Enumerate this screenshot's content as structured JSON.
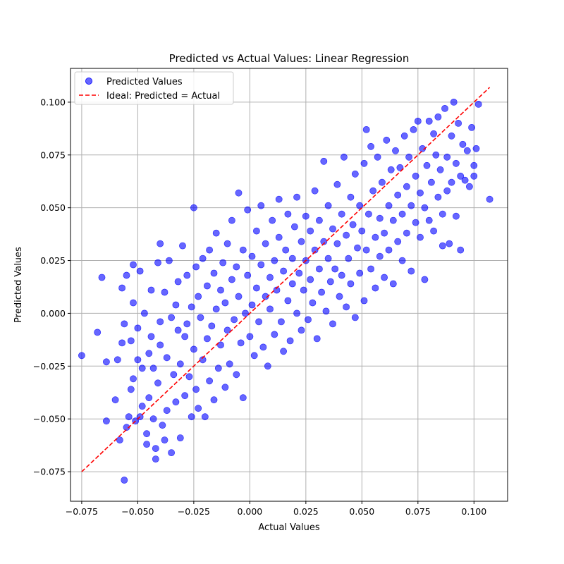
{
  "chart_data": {
    "type": "scatter",
    "title": "Predicted vs Actual Values: Linear Regression",
    "xlabel": "Actual Values",
    "ylabel": "Predicted Values",
    "xlim": [
      -0.08,
      0.115
    ],
    "ylim": [
      -0.089,
      0.116
    ],
    "xticks": [
      -0.075,
      -0.05,
      -0.025,
      0.0,
      0.025,
      0.05,
      0.075,
      0.1
    ],
    "xtick_labels": [
      "−0.075",
      "−0.050",
      "−0.025",
      "0.000",
      "0.025",
      "0.050",
      "0.075",
      "0.100"
    ],
    "yticks": [
      -0.075,
      -0.05,
      -0.025,
      0.0,
      0.025,
      0.05,
      0.075,
      0.1
    ],
    "ytick_labels": [
      "−0.075",
      "−0.050",
      "−0.025",
      "0.000",
      "0.025",
      "0.050",
      "0.075",
      "0.100"
    ],
    "grid": true,
    "legend_position": "top-left",
    "series": [
      {
        "name": "Predicted Values",
        "kind": "scatter",
        "color": "#0000ff",
        "points": [
          [
            -0.075,
            -0.02
          ],
          [
            -0.068,
            -0.009
          ],
          [
            -0.066,
            0.017
          ],
          [
            -0.064,
            -0.051
          ],
          [
            -0.064,
            -0.023
          ],
          [
            -0.06,
            -0.041
          ],
          [
            -0.059,
            -0.022
          ],
          [
            -0.058,
            -0.06
          ],
          [
            -0.057,
            -0.014
          ],
          [
            -0.057,
            0.012
          ],
          [
            -0.056,
            -0.005
          ],
          [
            -0.056,
            -0.079
          ],
          [
            -0.055,
            -0.054
          ],
          [
            -0.055,
            0.018
          ],
          [
            -0.054,
            -0.049
          ],
          [
            -0.053,
            -0.036
          ],
          [
            -0.053,
            -0.013
          ],
          [
            -0.052,
            -0.031
          ],
          [
            -0.052,
            0.005
          ],
          [
            -0.052,
            0.023
          ],
          [
            -0.051,
            -0.051
          ],
          [
            -0.05,
            -0.022
          ],
          [
            -0.05,
            -0.007
          ],
          [
            -0.049,
            0.02
          ],
          [
            -0.049,
            -0.049
          ],
          [
            -0.048,
            -0.026
          ],
          [
            -0.048,
            -0.044
          ],
          [
            -0.047,
            0.0
          ],
          [
            -0.046,
            -0.057
          ],
          [
            -0.046,
            -0.062
          ],
          [
            -0.045,
            -0.019
          ],
          [
            -0.045,
            -0.04
          ],
          [
            -0.044,
            -0.011
          ],
          [
            -0.044,
            0.011
          ],
          [
            -0.043,
            -0.026
          ],
          [
            -0.043,
            -0.05
          ],
          [
            -0.042,
            -0.069
          ],
          [
            -0.042,
            -0.064
          ],
          [
            -0.041,
            0.024
          ],
          [
            -0.041,
            -0.033
          ],
          [
            -0.04,
            -0.015
          ],
          [
            -0.04,
            0.033
          ],
          [
            -0.04,
            -0.004
          ],
          [
            -0.039,
            -0.053
          ],
          [
            -0.038,
            0.01
          ],
          [
            -0.038,
            -0.06
          ],
          [
            -0.037,
            -0.021
          ],
          [
            -0.037,
            -0.046
          ],
          [
            -0.036,
            0.025
          ],
          [
            -0.035,
            -0.066
          ],
          [
            -0.035,
            -0.002
          ],
          [
            -0.034,
            -0.029
          ],
          [
            -0.033,
            0.004
          ],
          [
            -0.033,
            -0.042
          ],
          [
            -0.032,
            -0.008
          ],
          [
            -0.032,
            0.015
          ],
          [
            -0.031,
            -0.059
          ],
          [
            -0.031,
            -0.024
          ],
          [
            -0.03,
            0.032
          ],
          [
            -0.029,
            -0.011
          ],
          [
            -0.029,
            -0.039
          ],
          [
            -0.028,
            0.018
          ],
          [
            -0.028,
            -0.005
          ],
          [
            -0.027,
            -0.03
          ],
          [
            -0.026,
            0.003
          ],
          [
            -0.026,
            -0.049
          ],
          [
            -0.025,
            0.05
          ],
          [
            -0.025,
            -0.017
          ],
          [
            -0.024,
            0.022
          ],
          [
            -0.024,
            -0.036
          ],
          [
            -0.023,
            0.008
          ],
          [
            -0.023,
            -0.045
          ],
          [
            -0.022,
            -0.002
          ],
          [
            -0.021,
            0.026
          ],
          [
            -0.021,
            -0.022
          ],
          [
            -0.02,
            -0.049
          ],
          [
            -0.019,
            0.013
          ],
          [
            -0.019,
            -0.012
          ],
          [
            -0.018,
            0.03
          ],
          [
            -0.018,
            -0.032
          ],
          [
            -0.017,
            -0.006
          ],
          [
            -0.016,
            0.019
          ],
          [
            -0.016,
            -0.041
          ],
          [
            -0.015,
            0.002
          ],
          [
            -0.015,
            0.038
          ],
          [
            -0.014,
            -0.026
          ],
          [
            -0.013,
            0.011
          ],
          [
            -0.013,
            -0.015
          ],
          [
            -0.012,
            0.024
          ],
          [
            -0.011,
            -0.035
          ],
          [
            -0.011,
            0.005
          ],
          [
            -0.01,
            0.033
          ],
          [
            -0.01,
            -0.008
          ],
          [
            -0.009,
            -0.024
          ],
          [
            -0.008,
            0.016
          ],
          [
            -0.008,
            0.044
          ],
          [
            -0.007,
            -0.003
          ],
          [
            -0.006,
            0.022
          ],
          [
            -0.006,
            -0.029
          ],
          [
            -0.005,
            0.008
          ],
          [
            -0.005,
            0.057
          ],
          [
            -0.004,
            -0.014
          ],
          [
            -0.003,
            0.03
          ],
          [
            -0.003,
            -0.04
          ],
          [
            -0.002,
            0.0
          ],
          [
            -0.001,
            0.018
          ],
          [
            -0.001,
            0.049
          ],
          [
            0.0,
            -0.011
          ],
          [
            0.001,
            0.027
          ],
          [
            0.001,
            0.004
          ],
          [
            0.002,
            -0.02
          ],
          [
            0.003,
            0.039
          ],
          [
            0.003,
            0.012
          ],
          [
            0.004,
            -0.004
          ],
          [
            0.005,
            0.023
          ],
          [
            0.005,
            0.051
          ],
          [
            0.006,
            -0.016
          ],
          [
            0.007,
            0.008
          ],
          [
            0.007,
            0.033
          ],
          [
            0.008,
            -0.025
          ],
          [
            0.009,
            0.017
          ],
          [
            0.009,
            0.002
          ],
          [
            0.01,
            0.044
          ],
          [
            0.011,
            0.025
          ],
          [
            0.011,
            -0.01
          ],
          [
            0.012,
            0.011
          ],
          [
            0.013,
            0.036
          ],
          [
            0.013,
            0.054
          ],
          [
            0.014,
            -0.004
          ],
          [
            0.015,
            0.02
          ],
          [
            0.015,
            -0.018
          ],
          [
            0.016,
            0.03
          ],
          [
            0.017,
            0.006
          ],
          [
            0.017,
            0.047
          ],
          [
            0.018,
            -0.013
          ],
          [
            0.019,
            0.014
          ],
          [
            0.019,
            0.026
          ],
          [
            0.02,
            0.041
          ],
          [
            0.021,
            0.0
          ],
          [
            0.021,
            0.055
          ],
          [
            0.022,
            0.019
          ],
          [
            0.023,
            -0.008
          ],
          [
            0.023,
            0.034
          ],
          [
            0.024,
            0.011
          ],
          [
            0.025,
            0.046
          ],
          [
            0.025,
            0.025
          ],
          [
            0.026,
            -0.003
          ],
          [
            0.027,
            0.016
          ],
          [
            0.027,
            0.039
          ],
          [
            0.028,
            0.005
          ],
          [
            0.029,
            0.03
          ],
          [
            0.029,
            0.058
          ],
          [
            0.03,
            -0.012
          ],
          [
            0.031,
            0.021
          ],
          [
            0.031,
            0.044
          ],
          [
            0.032,
            0.01
          ],
          [
            0.033,
            0.034
          ],
          [
            0.033,
            0.072
          ],
          [
            0.034,
            0.001
          ],
          [
            0.035,
            0.026
          ],
          [
            0.035,
            0.051
          ],
          [
            0.036,
            0.015
          ],
          [
            0.037,
            0.04
          ],
          [
            0.037,
            -0.005
          ],
          [
            0.038,
            0.021
          ],
          [
            0.039,
            0.061
          ],
          [
            0.039,
            0.033
          ],
          [
            0.04,
            0.008
          ],
          [
            0.041,
            0.047
          ],
          [
            0.041,
            0.018
          ],
          [
            0.042,
            0.074
          ],
          [
            0.043,
            0.037
          ],
          [
            0.043,
            0.003
          ],
          [
            0.044,
            0.026
          ],
          [
            0.045,
            0.055
          ],
          [
            0.045,
            0.014
          ],
          [
            0.046,
            0.042
          ],
          [
            0.047,
            0.066
          ],
          [
            0.047,
            -0.002
          ],
          [
            0.048,
            0.031
          ],
          [
            0.049,
            0.051
          ],
          [
            0.049,
            0.019
          ],
          [
            0.05,
            0.039
          ],
          [
            0.051,
            0.071
          ],
          [
            0.051,
            0.006
          ],
          [
            0.052,
            0.087
          ],
          [
            0.052,
            0.03
          ],
          [
            0.053,
            0.047
          ],
          [
            0.054,
            0.079
          ],
          [
            0.054,
            0.021
          ],
          [
            0.055,
            0.058
          ],
          [
            0.056,
            0.036
          ],
          [
            0.056,
            0.012
          ],
          [
            0.057,
            0.074
          ],
          [
            0.058,
            0.045
          ],
          [
            0.058,
            0.027
          ],
          [
            0.059,
            0.062
          ],
          [
            0.06,
            0.038
          ],
          [
            0.06,
            0.017
          ],
          [
            0.061,
            0.082
          ],
          [
            0.062,
            0.051
          ],
          [
            0.062,
            0.03
          ],
          [
            0.063,
            0.068
          ],
          [
            0.064,
            0.044
          ],
          [
            0.064,
            0.014
          ],
          [
            0.065,
            0.077
          ],
          [
            0.066,
            0.056
          ],
          [
            0.066,
            0.034
          ],
          [
            0.067,
            0.069
          ],
          [
            0.068,
            0.047
          ],
          [
            0.068,
            0.025
          ],
          [
            0.069,
            0.084
          ],
          [
            0.07,
            0.06
          ],
          [
            0.07,
            0.038
          ],
          [
            0.071,
            0.074
          ],
          [
            0.072,
            0.051
          ],
          [
            0.072,
            0.02
          ],
          [
            0.073,
            0.087
          ],
          [
            0.074,
            0.065
          ],
          [
            0.074,
            0.043
          ],
          [
            0.075,
            0.091
          ],
          [
            0.076,
            0.057
          ],
          [
            0.076,
            0.036
          ],
          [
            0.077,
            0.078
          ],
          [
            0.078,
            0.05
          ],
          [
            0.078,
            0.016
          ],
          [
            0.079,
            0.07
          ],
          [
            0.08,
            0.091
          ],
          [
            0.08,
            0.044
          ],
          [
            0.081,
            0.062
          ],
          [
            0.082,
            0.085
          ],
          [
            0.082,
            0.039
          ],
          [
            0.083,
            0.075
          ],
          [
            0.084,
            0.055
          ],
          [
            0.084,
            0.093
          ],
          [
            0.085,
            0.068
          ],
          [
            0.086,
            0.047
          ],
          [
            0.086,
            0.032
          ],
          [
            0.087,
            0.097
          ],
          [
            0.088,
            0.074
          ],
          [
            0.088,
            0.058
          ],
          [
            0.089,
            0.033
          ],
          [
            0.09,
            0.084
          ],
          [
            0.09,
            0.062
          ],
          [
            0.091,
            0.1
          ],
          [
            0.092,
            0.071
          ],
          [
            0.092,
            0.046
          ],
          [
            0.093,
            0.09
          ],
          [
            0.094,
            0.065
          ],
          [
            0.095,
            0.08
          ],
          [
            0.096,
            0.063
          ],
          [
            0.097,
            0.077
          ],
          [
            0.098,
            0.06
          ],
          [
            0.099,
            0.088
          ],
          [
            0.1,
            0.07
          ],
          [
            0.1,
            0.065
          ],
          [
            0.101,
            0.078
          ],
          [
            0.102,
            0.099
          ],
          [
            0.107,
            0.054
          ],
          [
            0.094,
            0.03
          ]
        ]
      },
      {
        "name": "Ideal: Predicted = Actual",
        "kind": "line",
        "style": "dashed",
        "color": "#ff0000",
        "x": [
          -0.075,
          0.107
        ],
        "y": [
          -0.075,
          0.107
        ]
      }
    ]
  }
}
